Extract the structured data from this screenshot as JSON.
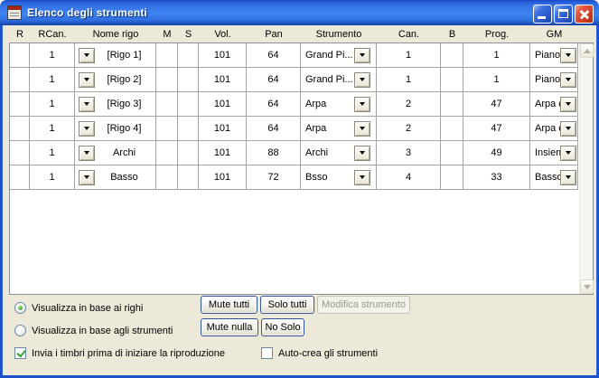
{
  "window": {
    "title": "Elenco degli strumenti"
  },
  "table": {
    "columns": [
      "R",
      "RCan.",
      "Nome rigo",
      "M",
      "S",
      "Vol.",
      "Pan",
      "Strumento",
      "Can.",
      "B",
      "Prog.",
      "GM"
    ],
    "rows": [
      {
        "r": "",
        "rcan": "1",
        "nome": "[Rigo 1]",
        "m": "",
        "s": "",
        "vol": "101",
        "pan": "64",
        "strumento": "Grand Pi...",
        "can": "1",
        "b": "",
        "prog": "1",
        "gm": "Pianofort..."
      },
      {
        "r": "",
        "rcan": "1",
        "nome": "[Rigo 2]",
        "m": "",
        "s": "",
        "vol": "101",
        "pan": "64",
        "strumento": "Grand Pi...",
        "can": "1",
        "b": "",
        "prog": "1",
        "gm": "Pianofort..."
      },
      {
        "r": "",
        "rcan": "1",
        "nome": "[Rigo 3]",
        "m": "",
        "s": "",
        "vol": "101",
        "pan": "64",
        "strumento": "Arpa",
        "can": "2",
        "b": "",
        "prog": "47",
        "gm": "Arpa d'or..."
      },
      {
        "r": "",
        "rcan": "1",
        "nome": "[Rigo 4]",
        "m": "",
        "s": "",
        "vol": "101",
        "pan": "64",
        "strumento": "Arpa",
        "can": "2",
        "b": "",
        "prog": "47",
        "gm": "Arpa d'or..."
      },
      {
        "r": "",
        "rcan": "1",
        "nome": "Archi",
        "m": "",
        "s": "",
        "vol": "101",
        "pan": "88",
        "strumento": "Archi",
        "can": "3",
        "b": "",
        "prog": "49",
        "gm": "Insieme ..."
      },
      {
        "r": "",
        "rcan": "1",
        "nome": "Basso",
        "m": "",
        "s": "",
        "vol": "101",
        "pan": "72",
        "strumento": "Bsso",
        "can": "4",
        "b": "",
        "prog": "33",
        "gm": "Basso a..."
      }
    ]
  },
  "options": {
    "view_by_staff": {
      "label": "Visualizza in base ai righi",
      "selected": true
    },
    "view_by_instrument": {
      "label": "Visualizza in base agli strumenti",
      "selected": false
    },
    "send_patches": {
      "label": "Invia i timbri prima di iniziare la riproduzione",
      "checked": true
    },
    "auto_create": {
      "label": "Auto-crea gli strumenti",
      "checked": false
    }
  },
  "buttons": {
    "mute_all": "Mute tutti",
    "solo_all": "Solo tutti",
    "edit_instrument": "Modifica strumento",
    "mute_none": "Mute nulla",
    "no_solo": "No Solo"
  },
  "colors": {
    "titlebar_blue": "#2e6fe2",
    "window_border": "#1c50c8",
    "dialog_bg": "#ece9d8",
    "close_red": "#ce3a20",
    "check_green": "#26a126",
    "grid_line": "#a5a5a5"
  }
}
